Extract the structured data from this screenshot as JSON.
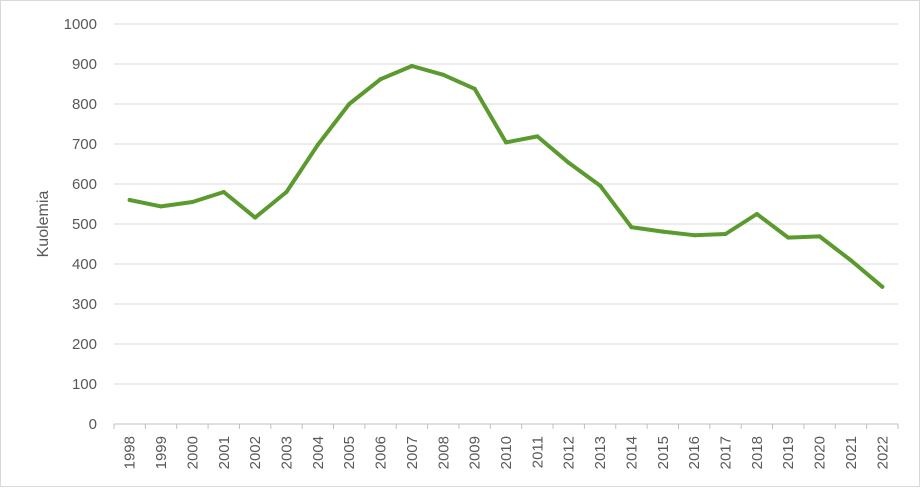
{
  "chart_data": {
    "type": "line",
    "title": "",
    "xlabel": "",
    "ylabel": "Kuolemia",
    "ylim": [
      0,
      1000
    ],
    "yticks": [
      0,
      100,
      200,
      300,
      400,
      500,
      600,
      700,
      800,
      900,
      1000
    ],
    "grid": true,
    "legend": "none",
    "x": [
      "1998",
      "1999",
      "2000",
      "2001",
      "2002",
      "2003",
      "2004",
      "2005",
      "2006",
      "2007",
      "2008",
      "2009",
      "2010",
      "2011",
      "2012",
      "2013",
      "2014",
      "2015",
      "2016",
      "2017",
      "2018",
      "2019",
      "2020",
      "2021",
      "2022"
    ],
    "series": [
      {
        "color": "#5a9a2e",
        "values": [
          560,
          544,
          555,
          580,
          516,
          580,
          698,
          800,
          862,
          895,
          873,
          838,
          704,
          719,
          653,
          596,
          492,
          481,
          472,
          475,
          525,
          466,
          469,
          409,
          343
        ]
      }
    ]
  }
}
